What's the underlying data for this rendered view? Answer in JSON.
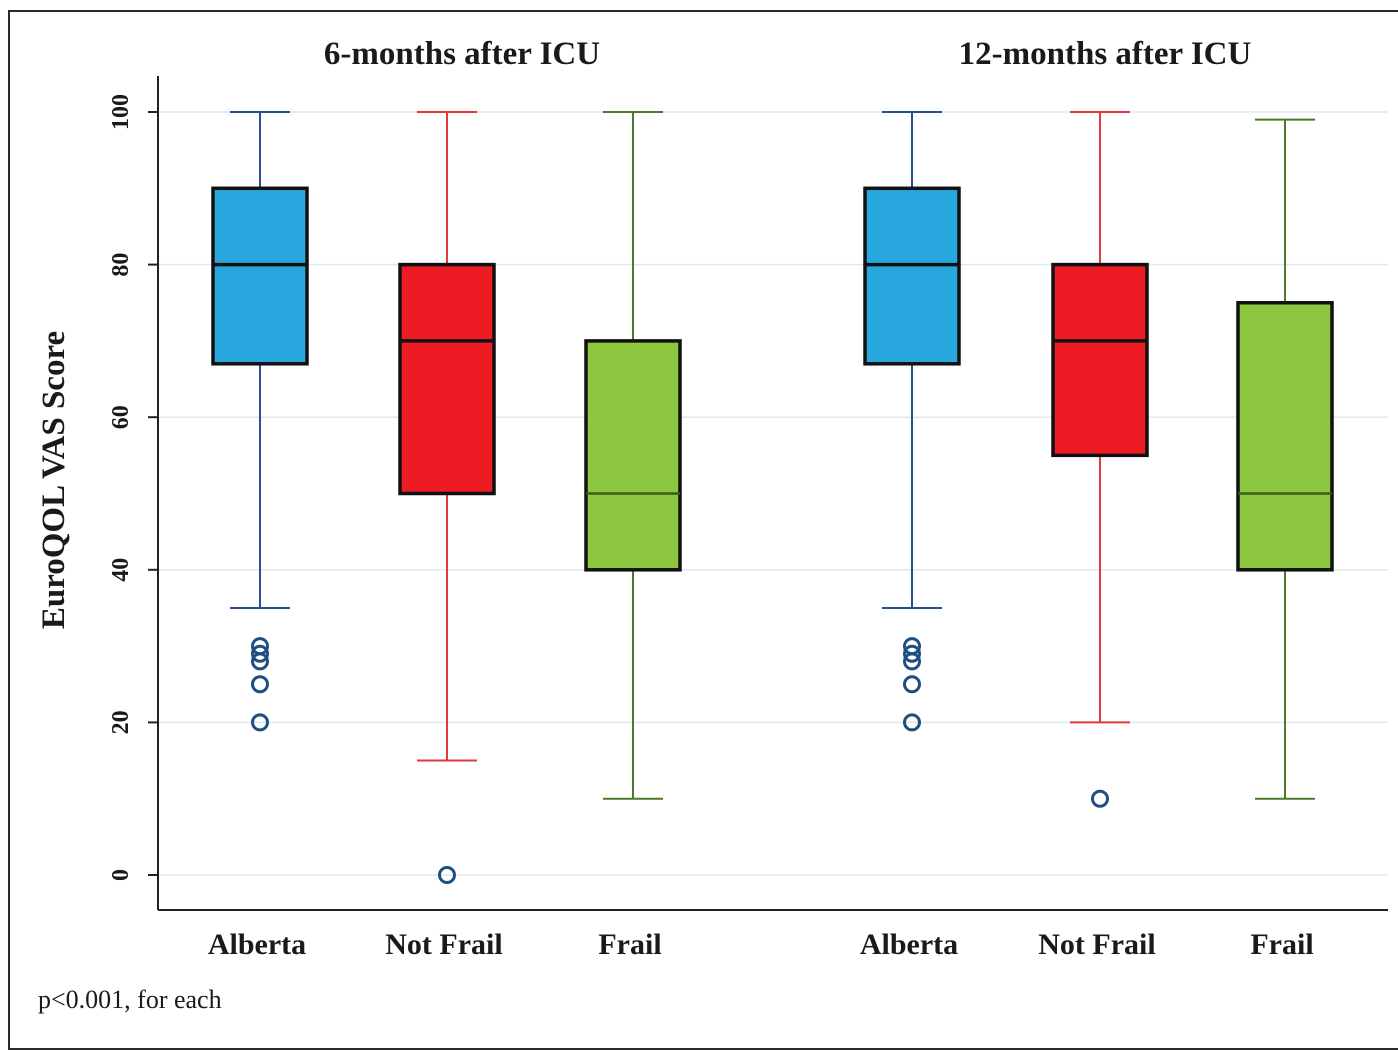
{
  "chart_data": {
    "type": "boxplot",
    "ylabel": "EuroQOL VAS Score",
    "ylim": [
      -5,
      105
    ],
    "yticks": [
      0,
      20,
      40,
      60,
      80,
      100
    ],
    "grid": true,
    "footnote": "p<0.001, for each",
    "colors": {
      "Alberta": "#29a8e0",
      "Not Frail": "#ed1c24",
      "Frail": "#8dc63f"
    },
    "whisker_colors": {
      "Alberta": "#2b4f8c",
      "Not Frail": "#e03a3e",
      "Frail": "#4d7a2a"
    },
    "panels": [
      {
        "title": "6-months after ICU",
        "groups": [
          {
            "category": "Alberta",
            "whisker_low": 35,
            "q1": 67,
            "median": 80,
            "q3": 90,
            "whisker_high": 100,
            "outliers": [
              20,
              25,
              28,
              29,
              30
            ]
          },
          {
            "category": "Not Frail",
            "whisker_low": 15,
            "q1": 50,
            "median": 70,
            "q3": 80,
            "whisker_high": 100,
            "outliers": [
              0
            ]
          },
          {
            "category": "Frail",
            "whisker_low": 10,
            "q1": 40,
            "median": 50,
            "q3": 70,
            "whisker_high": 100,
            "outliers": []
          }
        ]
      },
      {
        "title": "12-months after ICU",
        "groups": [
          {
            "category": "Alberta",
            "whisker_low": 35,
            "q1": 67,
            "median": 80,
            "q3": 90,
            "whisker_high": 100,
            "outliers": [
              20,
              25,
              28,
              29,
              30
            ]
          },
          {
            "category": "Not Frail",
            "whisker_low": 20,
            "q1": 55,
            "median": 70,
            "q3": 80,
            "whisker_high": 100,
            "outliers": [
              10
            ]
          },
          {
            "category": "Frail",
            "whisker_low": 10,
            "q1": 40,
            "median": 50,
            "q3": 75,
            "whisker_high": 99,
            "outliers": []
          }
        ]
      }
    ]
  }
}
